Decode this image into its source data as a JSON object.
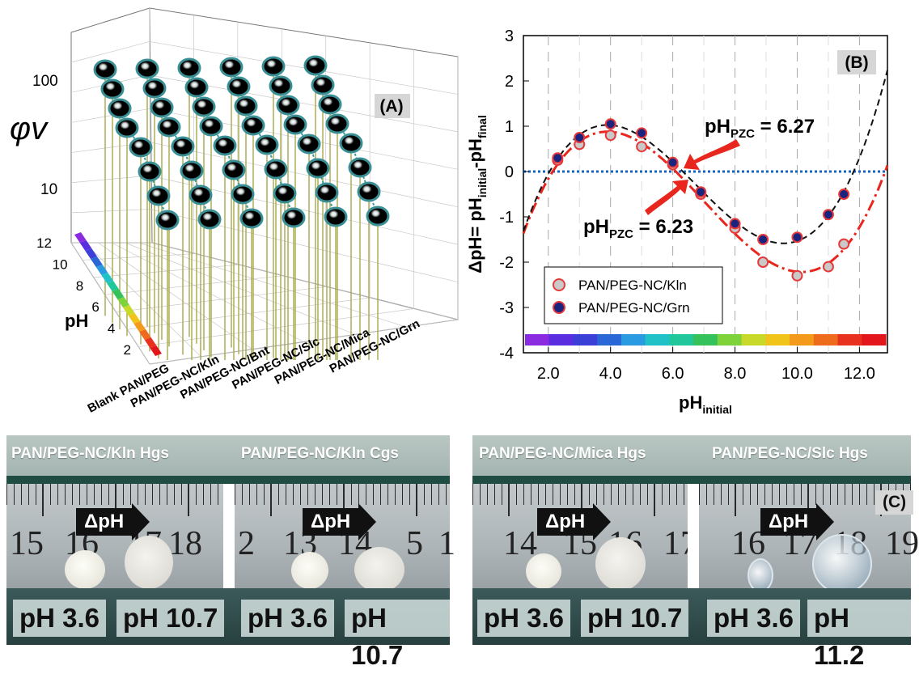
{
  "panelA": {
    "label": "(A)",
    "z_label": "φv",
    "z_ticks": [
      "100",
      "10"
    ],
    "ph_label": "pH",
    "ph_ticks": [
      "12",
      "10",
      "8",
      "6",
      "4",
      "2"
    ],
    "materials": [
      "Blank PAN/PEG",
      "PAN/PEG-NC/Kln",
      "PAN/PEG-NC/Bnt",
      "PAN/PEG-NC/Slc",
      "PAN/PEG-NC/Mica",
      "PAN/PEG-NC/Grn"
    ]
  },
  "chart_data": {
    "type": "scatter",
    "label": "(B)",
    "xlabel_main": "pH",
    "xlabel_sub": "initial",
    "ylabel_main": "ΔpH= pH",
    "ylabel_sub1": "initial",
    "ylabel_mid": "-pH",
    "ylabel_sub2": "final",
    "xlim": [
      1.2,
      12.9
    ],
    "ylim": [
      -4,
      3
    ],
    "x_ticks": [
      "2.0",
      "4.0",
      "6.0",
      "8.0",
      "10.0",
      "12.0"
    ],
    "y_ticks": [
      "3",
      "2",
      "1",
      "0",
      "-1",
      "-2",
      "-3",
      "-4"
    ],
    "annotations": [
      {
        "main": "pH",
        "sub": "PZC",
        "value": " = 6.27"
      },
      {
        "main": "pH",
        "sub": "PZC",
        "value": " = 6.23"
      }
    ],
    "series": [
      {
        "name": "PAN/PEG-NC/Kln",
        "color": "#e63a3a",
        "fill": "#c9c9c9",
        "x": [
          2.3,
          3.0,
          4.0,
          5.0,
          6.0,
          6.9,
          8.0,
          8.9,
          10.0,
          11.0,
          11.5
        ],
        "y": [
          0.25,
          0.6,
          0.8,
          0.55,
          0.15,
          -0.5,
          -1.25,
          -2.0,
          -2.3,
          -2.1,
          -1.6
        ]
      },
      {
        "name": "PAN/PEG-NC/Grn",
        "color": "#e63a3a",
        "fill": "#1a237e",
        "x": [
          2.3,
          3.0,
          4.0,
          5.0,
          6.0,
          6.9,
          8.0,
          8.9,
          10.0,
          11.0,
          11.5
        ],
        "y": [
          0.3,
          0.75,
          1.05,
          0.85,
          0.2,
          -0.45,
          -1.15,
          -1.5,
          -1.45,
          -0.95,
          -0.5
        ]
      }
    ],
    "colors": [
      "#8a2be2",
      "#5a2ee0",
      "#3b3fd8",
      "#2a67d6",
      "#2a9be0",
      "#21c2c7",
      "#20c79a",
      "#36c25a",
      "#7ed23a",
      "#c9d92a",
      "#f0c419",
      "#f39a1b",
      "#ee6a1d",
      "#e8321f",
      "#e3161b"
    ]
  },
  "photos": {
    "left": {
      "titles": [
        "PAN/PEG-NC/Kln Hgs",
        "PAN/PEG-NC/Kln Cgs"
      ],
      "delta": "ΔpH",
      "ruler_numbers_1": [
        "15",
        "16",
        "17",
        "18"
      ],
      "ruler_numbers_2": [
        "2",
        "13",
        "14",
        "5",
        "1"
      ],
      "ph": [
        "pH 3.6",
        "pH 10.7",
        "pH 3.6",
        "pH 10.7"
      ]
    },
    "right": {
      "label": "(C)",
      "titles": [
        "PAN/PEG-NC/Mica Hgs",
        "PAN/PEG-NC/Slc Hgs"
      ],
      "delta": "ΔpH",
      "ruler_numbers_1": [
        "14",
        "15",
        "16",
        "17"
      ],
      "ruler_numbers_2": [
        "16",
        "17",
        "18",
        "19"
      ],
      "ph": [
        "pH 3.6",
        "pH 10.7",
        "pH 3.6",
        "pH 11.2"
      ]
    }
  }
}
